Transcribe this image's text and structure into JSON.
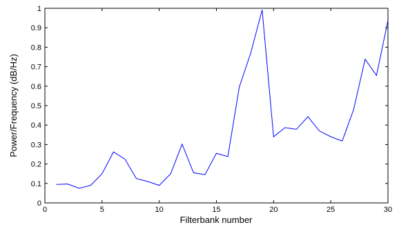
{
  "chart_data": {
    "type": "line",
    "title": "",
    "xlabel": "Filterbank number",
    "ylabel": "Power/Frequency (dB/Hz)",
    "xlim": [
      0,
      30
    ],
    "ylim": [
      0,
      1
    ],
    "grid": false,
    "xticks": [
      0,
      5,
      10,
      15,
      20,
      25,
      30
    ],
    "yticks": [
      0,
      0.1,
      0.2,
      0.3,
      0.4,
      0.5,
      0.6,
      0.7,
      0.8,
      0.9,
      1
    ],
    "x_tick_labels": [
      "0",
      "5",
      "10",
      "15",
      "20",
      "25",
      "30"
    ],
    "y_tick_labels": [
      "0",
      "0.1",
      "0.2",
      "0.3",
      "0.4",
      "0.5",
      "0.6",
      "0.7",
      "0.8",
      "0.9",
      "1"
    ],
    "series": [
      {
        "color": "#0000ff",
        "x": [
          1,
          2,
          3,
          4,
          5,
          6,
          7,
          8,
          9,
          10,
          11,
          12,
          13,
          14,
          15,
          16,
          17,
          18,
          19,
          20,
          21,
          22,
          23,
          24,
          25,
          26,
          27,
          28,
          29,
          30
        ],
        "values": [
          0.095,
          0.097,
          0.075,
          0.09,
          0.15,
          0.262,
          0.225,
          0.125,
          0.11,
          0.09,
          0.15,
          0.302,
          0.155,
          0.145,
          0.255,
          0.238,
          0.595,
          0.77,
          0.992,
          0.34,
          0.387,
          0.378,
          0.443,
          0.37,
          0.34,
          0.318,
          0.48,
          0.738,
          0.655,
          0.938
        ]
      }
    ]
  }
}
